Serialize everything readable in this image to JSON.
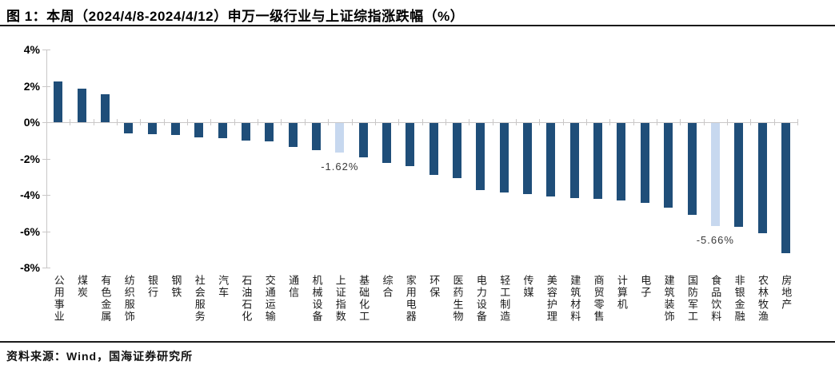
{
  "title": "图 1：本周（2024/4/8-2024/4/12）申万一级行业与上证综指涨跌幅（%）",
  "footer": {
    "source_label": "资料来源：Wind，国海证券研究所"
  },
  "colors": {
    "bar": "#1f4e79",
    "highlight_bar": "#c7d8ef",
    "axis": "#c9c7c7",
    "data_label_text": "#3a3a3a"
  },
  "chart_data": {
    "type": "bar",
    "title": "本周（2024/4/8-2024/4/12）申万一级行业与上证综指涨跌幅（%）",
    "xlabel": "",
    "ylabel": "",
    "ylim": [
      -8,
      4
    ],
    "grid": false,
    "legend": "none",
    "yticks": [
      {
        "label": "4%",
        "value": 4
      },
      {
        "label": "2%",
        "value": 2
      },
      {
        "label": "0%",
        "value": 0
      },
      {
        "label": "-2%",
        "value": -2
      },
      {
        "label": "-4%",
        "value": -4
      },
      {
        "label": "-6%",
        "value": -6
      },
      {
        "label": "-8%",
        "value": -8
      }
    ],
    "categories": [
      "公用事业",
      "煤炭",
      "有色金属",
      "纺织服饰",
      "银行",
      "钢铁",
      "社会服务",
      "汽车",
      "石油石化",
      "交通运输",
      "通信",
      "机械设备",
      "上证指数",
      "基础化工",
      "综合",
      "家用电器",
      "环保",
      "医药生物",
      "电力设备",
      "轻工制造",
      "传媒",
      "美容护理",
      "建筑材料",
      "商贸零售",
      "计算机",
      "电子",
      "建筑装饰",
      "国防军工",
      "食品饮料",
      "非银金融",
      "农林牧渔",
      "房地产"
    ],
    "values": [
      2.25,
      1.85,
      1.55,
      -0.55,
      -0.6,
      -0.65,
      -0.78,
      -0.82,
      -0.95,
      -1.03,
      -1.31,
      -1.48,
      -1.62,
      -1.9,
      -2.21,
      -2.36,
      -2.84,
      -3.02,
      -3.71,
      -3.8,
      -3.9,
      -4.04,
      -4.12,
      -4.16,
      -4.25,
      -4.38,
      -4.66,
      -5.04,
      -5.66,
      -5.72,
      -6.05,
      -7.15
    ],
    "highlight_indices": [
      12,
      28
    ],
    "annotations": [
      {
        "index": 12,
        "text": "-1.62%"
      },
      {
        "index": 28,
        "text": "-5.66%"
      }
    ]
  }
}
